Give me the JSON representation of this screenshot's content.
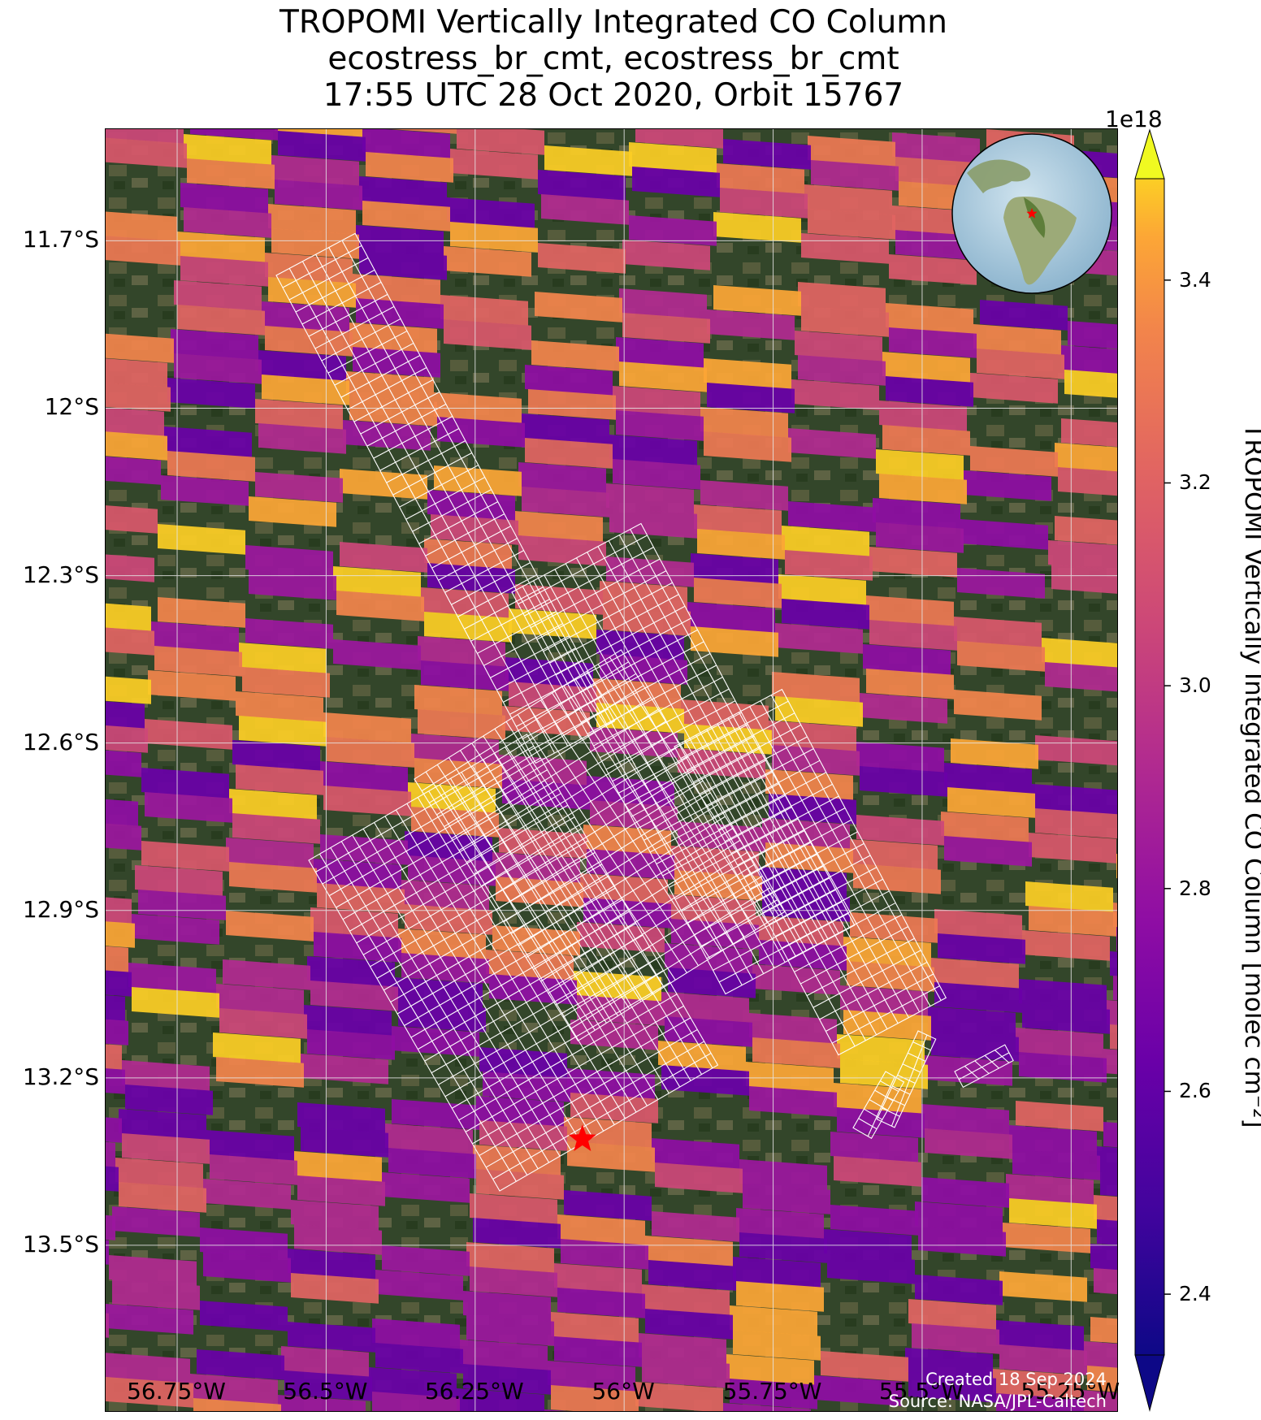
{
  "title": {
    "line1": "TROPOMI Vertically Integrated CO Column",
    "line2": "ecostress_br_cmt, ecostress_br_cmt",
    "line3": "17:55 UTC 28 Oct 2020, Orbit 15767"
  },
  "map": {
    "lat_ticks": [
      "11.7°S",
      "12°S",
      "12.3°S",
      "12.6°S",
      "12.9°S",
      "13.2°S",
      "13.5°S"
    ],
    "lat_values": [
      -11.7,
      -12.0,
      -12.3,
      -12.6,
      -12.9,
      -13.2,
      -13.5
    ],
    "lon_ticks": [
      "56.75°W",
      "56.5°W",
      "56.25°W",
      "56°W",
      "55.75°W",
      "55.5°W",
      "55.25°W"
    ],
    "lon_values": [
      -56.75,
      -56.5,
      -56.25,
      -56.0,
      -55.75,
      -55.5,
      -55.25
    ],
    "extent": {
      "lon_min": -56.87,
      "lon_max": -55.17,
      "lat_max": -11.5,
      "lat_min": -13.8
    },
    "site_marker": {
      "lon": -56.07,
      "lat": -13.31,
      "color": "#ff0000",
      "icon": "star-icon"
    },
    "basemap": "satellite imagery (forest and agricultural fields)",
    "grid": true,
    "inset_globe": {
      "icon": "globe-icon",
      "marker_color": "#ff0000",
      "location": "top-right"
    }
  },
  "colorbar": {
    "exponent": "1e18",
    "ticks": [
      "2.4",
      "2.6",
      "2.8",
      "3.0",
      "3.2",
      "3.4"
    ],
    "tick_values": [
      2.4,
      2.6,
      2.8,
      3.0,
      3.2,
      3.4
    ],
    "range": [
      2.34,
      3.5
    ],
    "label": "TROPOMI Vertically Integrated CO Column [molec cm⁻²]",
    "colormap": "plasma",
    "extend": "both"
  },
  "footer": {
    "created": "Created 18 Sep 2024",
    "source": "Source: NASA/JPL-Caltech"
  }
}
